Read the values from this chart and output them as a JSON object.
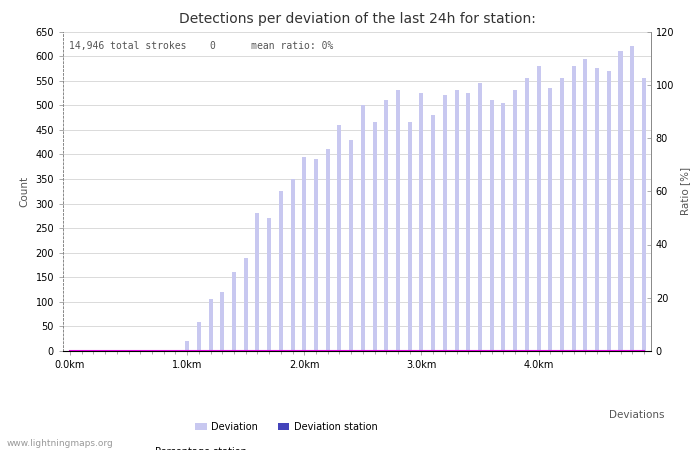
{
  "title": "Detections per deviation of the last 24h for station:",
  "subtitle": "14,946 total strokes    0      mean ratio: 0%",
  "xlabel": "Deviations",
  "ylabel_left": "Count",
  "ylabel_right": "Ratio [%]",
  "watermark": "www.lightningmaps.org",
  "ylim_left": [
    0,
    650
  ],
  "ylim_right": [
    0,
    120
  ],
  "yticks_left": [
    0,
    50,
    100,
    150,
    200,
    250,
    300,
    350,
    400,
    450,
    500,
    550,
    600,
    650
  ],
  "yticks_right": [
    0,
    20,
    40,
    60,
    80,
    100,
    120
  ],
  "xtick_labels": [
    "0.0km",
    "1.0km",
    "2.0km",
    "3.0km",
    "4.0km"
  ],
  "xtick_positions": [
    0,
    10,
    20,
    30,
    40
  ],
  "bar_color_light": "#c8c8f0",
  "bar_color_dark": "#4444bb",
  "line_color": "#dd00dd",
  "bar_width": 0.35,
  "deviation_values": [
    0,
    0,
    0,
    0,
    0,
    0,
    0,
    0,
    0,
    0,
    20,
    60,
    105,
    120,
    160,
    190,
    280,
    270,
    325,
    350,
    395,
    390,
    410,
    460,
    430,
    500,
    465,
    510,
    530,
    465,
    525,
    480,
    520,
    530,
    525,
    545,
    510,
    505,
    530,
    555,
    580,
    535,
    555,
    580,
    595,
    575,
    570,
    610,
    620,
    555
  ],
  "station_values": [
    0,
    0,
    0,
    0,
    0,
    0,
    0,
    0,
    0,
    0,
    0,
    0,
    0,
    0,
    0,
    0,
    0,
    0,
    0,
    0,
    0,
    0,
    0,
    0,
    0,
    0,
    0,
    0,
    0,
    0,
    0,
    0,
    0,
    0,
    0,
    0,
    0,
    0,
    0,
    0,
    0,
    0,
    0,
    0,
    0,
    0,
    0,
    0,
    0,
    0
  ],
  "percentage_values": [
    0,
    0,
    0,
    0,
    0,
    0,
    0,
    0,
    0,
    0,
    0,
    0,
    0,
    0,
    0,
    0,
    0,
    0,
    0,
    0,
    0,
    0,
    0,
    0,
    0,
    0,
    0,
    0,
    0,
    0,
    0,
    0,
    0,
    0,
    0,
    0,
    0,
    0,
    0,
    0,
    0,
    0,
    0,
    0,
    0,
    0,
    0,
    0,
    0,
    0
  ],
  "n_bars": 50,
  "bg_color": "#ffffff",
  "grid_color": "#cccccc",
  "text_color": "#555555",
  "font_size_title": 10,
  "font_size_labels": 7.5,
  "font_size_ticks": 7,
  "font_size_watermark": 6.5,
  "font_size_subtitle": 7
}
